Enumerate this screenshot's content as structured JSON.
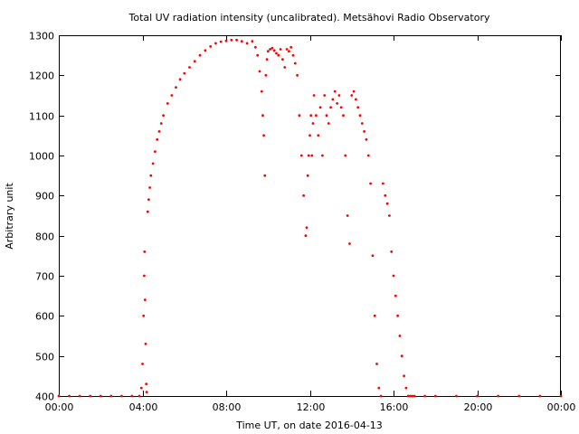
{
  "chart_data": {
    "type": "scatter",
    "title": "Total UV radiation intensity (uncalibrated). Metsähovi Radio Observatory",
    "xlabel": "Time UT, on date 2016-04-13",
    "ylabel": "Arbitrary unit",
    "x_unit": "hours UT",
    "xlim": [
      0,
      24
    ],
    "ylim": [
      400,
      1300
    ],
    "x_ticks": [
      0,
      4,
      8,
      12,
      16,
      20,
      24
    ],
    "x_tick_labels": [
      "00:00",
      "04:00",
      "08:00",
      "12:00",
      "16:00",
      "20:00",
      "00:00"
    ],
    "y_ticks": [
      400,
      500,
      600,
      700,
      800,
      900,
      1000,
      1100,
      1200,
      1300
    ],
    "y_tick_labels": [
      "400",
      "500",
      "600",
      "700",
      "800",
      "900",
      "1000",
      "1100",
      "1200",
      "1300"
    ],
    "grid": false,
    "legend": "none",
    "color": "#ff0000",
    "series": [
      {
        "x": [
          0.0,
          0.5,
          1.0,
          1.5,
          2.0,
          2.5,
          3.0,
          3.5,
          3.85,
          3.95,
          4.0,
          4.05,
          4.08,
          4.1,
          4.12,
          4.15,
          4.18,
          4.2,
          4.25,
          4.3,
          4.35,
          4.4,
          4.5,
          4.6,
          4.7,
          4.8,
          4.9,
          5.0,
          5.2,
          5.4,
          5.6,
          5.8,
          6.0,
          6.25,
          6.5,
          6.75,
          7.0,
          7.25,
          7.5,
          7.75,
          8.0,
          8.25,
          8.5,
          8.75,
          9.0,
          9.25,
          9.4,
          9.5,
          9.6,
          9.7,
          9.75,
          9.8,
          9.85,
          9.9,
          9.95,
          10.0,
          10.1,
          10.2,
          10.3,
          10.4,
          10.5,
          10.6,
          10.7,
          10.8,
          10.9,
          11.0,
          11.1,
          11.2,
          11.3,
          11.4,
          11.5,
          11.6,
          11.7,
          11.8,
          11.85,
          11.9,
          11.95,
          12.0,
          12.05,
          12.1,
          12.15,
          12.2,
          12.3,
          12.4,
          12.5,
          12.6,
          12.7,
          12.8,
          12.9,
          13.0,
          13.1,
          13.2,
          13.3,
          13.4,
          13.5,
          13.6,
          13.7,
          13.8,
          13.9,
          14.0,
          14.1,
          14.2,
          14.3,
          14.4,
          14.5,
          14.6,
          14.7,
          14.8,
          14.9,
          15.0,
          15.1,
          15.2,
          15.3,
          15.4,
          15.5,
          15.6,
          15.7,
          15.8,
          15.9,
          16.0,
          16.1,
          16.2,
          16.3,
          16.4,
          16.5,
          16.6,
          16.7,
          16.8,
          16.9,
          17.0,
          17.5,
          18.0,
          19.0,
          20.0,
          21.0,
          22.0,
          23.0,
          24.0
        ],
        "y": [
          400,
          400,
          400,
          400,
          400,
          400,
          400,
          400,
          400,
          420,
          480,
          600,
          700,
          760,
          640,
          530,
          430,
          410,
          860,
          890,
          920,
          950,
          980,
          1010,
          1040,
          1060,
          1080,
          1100,
          1130,
          1150,
          1170,
          1190,
          1205,
          1220,
          1235,
          1250,
          1262,
          1272,
          1280,
          1284,
          1286,
          1288,
          1288,
          1285,
          1280,
          1285,
          1270,
          1250,
          1210,
          1160,
          1100,
          1050,
          950,
          1200,
          1240,
          1260,
          1265,
          1268,
          1262,
          1255,
          1250,
          1265,
          1240,
          1220,
          1265,
          1260,
          1270,
          1250,
          1230,
          1200,
          1100,
          1000,
          900,
          800,
          820,
          950,
          1000,
          1050,
          1100,
          1000,
          1080,
          1150,
          1100,
          1050,
          1120,
          1000,
          1150,
          1100,
          1080,
          1120,
          1140,
          1160,
          1130,
          1150,
          1120,
          1100,
          1000,
          850,
          780,
          1150,
          1160,
          1140,
          1120,
          1100,
          1080,
          1060,
          1040,
          1000,
          930,
          750,
          600,
          480,
          420,
          400,
          930,
          900,
          880,
          850,
          760,
          700,
          650,
          600,
          550,
          500,
          450,
          420,
          400,
          400,
          400,
          400,
          400,
          400,
          400,
          400,
          400,
          400,
          400,
          400
        ]
      }
    ]
  }
}
